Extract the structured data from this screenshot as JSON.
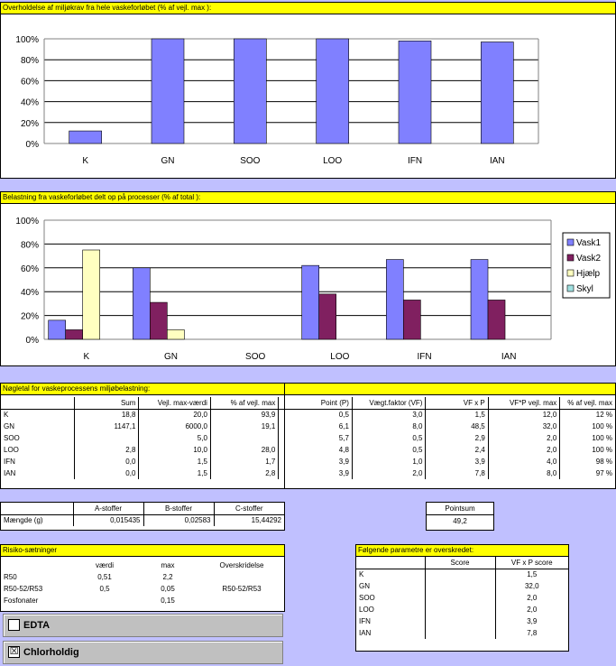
{
  "chart1": {
    "title": "Overholdelse af miljøkrav fra hele vaskeforløbet (% af vejl. max ):",
    "chart_data": {
      "type": "bar",
      "categories": [
        "K",
        "GN",
        "SOO",
        "LOO",
        "IFN",
        "IAN"
      ],
      "values": [
        12,
        100,
        100,
        100,
        98,
        97
      ],
      "ylim": [
        0,
        100
      ],
      "yticks": [
        "0%",
        "20%",
        "40%",
        "60%",
        "80%",
        "100%"
      ],
      "grid": true,
      "bar_color": "#8080ff"
    }
  },
  "chart2": {
    "title": "Belastning fra vaskeforløbet delt op på processer (% af total ):",
    "chart_data": {
      "type": "bar",
      "categories": [
        "K",
        "GN",
        "SOO",
        "LOO",
        "IFN",
        "IAN"
      ],
      "series": [
        {
          "name": "Vask1",
          "values": [
            16,
            60,
            0,
            62,
            67,
            67
          ],
          "color": "#8080ff"
        },
        {
          "name": "Vask2",
          "values": [
            8,
            31,
            0,
            38,
            33,
            33
          ],
          "color": "#802060"
        },
        {
          "name": "Hjælp",
          "values": [
            75,
            8,
            0,
            0,
            0,
            0
          ],
          "color": "#ffffc0"
        },
        {
          "name": "Skyl",
          "values": [
            0,
            0,
            0,
            0,
            0,
            0
          ],
          "color": "#a0e0e0"
        }
      ],
      "ylim": [
        0,
        100
      ],
      "yticks": [
        "0%",
        "20%",
        "40%",
        "60%",
        "80%",
        "100%"
      ],
      "grid": true,
      "legend": "right"
    }
  },
  "noegletal": {
    "title": "Nøgletal for vaskeprocessens miljøbelastning:",
    "headers": [
      "",
      "Sum",
      "Vejl. max-værdi",
      "% af vejl. max",
      "Point (P)",
      "Vægt.faktor (VF)",
      "VF x P",
      "VF*P vejl. max",
      "% af vejl. max"
    ],
    "rows": [
      [
        "K",
        "18,8",
        "20,0",
        "93,9",
        "0,5",
        "3,0",
        "1,5",
        "12,0",
        "12 %"
      ],
      [
        "GN",
        "1147,1",
        "6000,0",
        "19,1",
        "6,1",
        "8,0",
        "48,5",
        "32,0",
        "100 %"
      ],
      [
        "SOO",
        "",
        "5,0",
        "",
        "5,7",
        "0,5",
        "2,9",
        "2,0",
        "100 %"
      ],
      [
        "LOO",
        "2,8",
        "10,0",
        "28,0",
        "4,8",
        "0,5",
        "2,4",
        "2,0",
        "100 %"
      ],
      [
        "IFN",
        "0,0",
        "1,5",
        "1,7",
        "3,9",
        "1,0",
        "3,9",
        "4,0",
        "98 %"
      ],
      [
        "IAN",
        "0,0",
        "1,5",
        "2,8",
        "3,9",
        "2,0",
        "7,8",
        "8,0",
        "97 %"
      ]
    ]
  },
  "stoffer": {
    "headers": [
      "",
      "A-stoffer",
      "B-stoffer",
      "C-stoffer"
    ],
    "row_label": "Mængde (g)",
    "values": [
      "0,015435",
      "0,02583",
      "15,44292"
    ]
  },
  "pointsum": {
    "label": "Pointsum",
    "value": "49,2"
  },
  "risiko": {
    "title": "Risiko-sætninger",
    "headers": [
      "",
      "værdi",
      "max",
      "Overskridelse"
    ],
    "rows": [
      [
        "R50",
        "0,51",
        "2,2",
        ""
      ],
      [
        "R50-52/R53",
        "0,5",
        "0,05",
        "R50-52/R53"
      ],
      [
        "Fosfonater",
        "",
        "0,15",
        ""
      ]
    ]
  },
  "checks": {
    "edta": {
      "label": "EDTA",
      "mark": ""
    },
    "chlor": {
      "label": "Chlorholdig",
      "mark": "☒"
    }
  },
  "parametre": {
    "title": "Følgende parametre er overskredet:",
    "headers": [
      "",
      "Score",
      "VF x P score"
    ],
    "rows": [
      [
        "K",
        "",
        "1,5"
      ],
      [
        "GN",
        "",
        "32,0"
      ],
      [
        "SOO",
        "",
        "2,0"
      ],
      [
        "LOO",
        "",
        "2,0"
      ],
      [
        "IFN",
        "",
        "3,9"
      ],
      [
        "IAN",
        "",
        "7,8"
      ]
    ]
  }
}
